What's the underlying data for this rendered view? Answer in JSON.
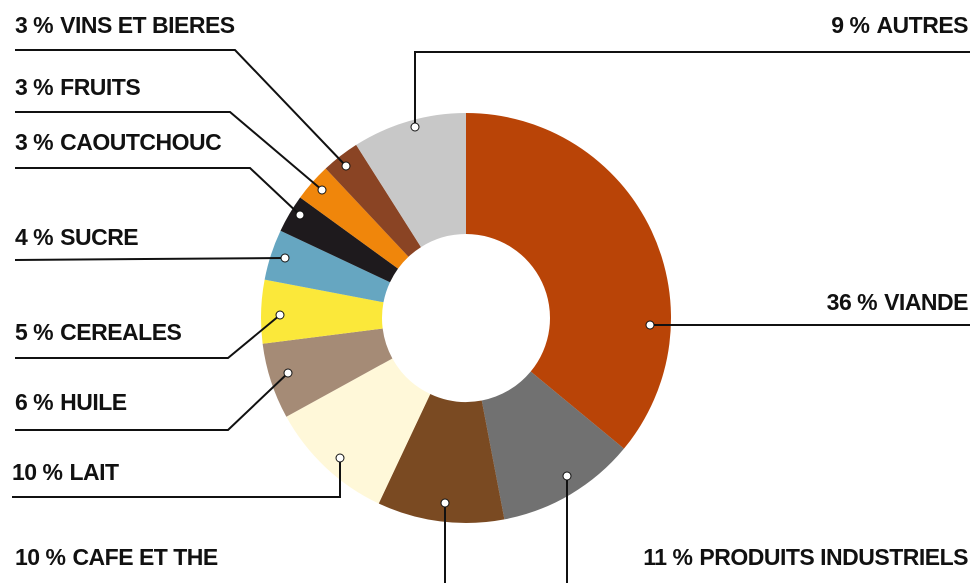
{
  "chart_data": {
    "type": "donut",
    "categories": [
      "VIANDE",
      "PRODUITS INDUSTRIELS",
      "CAFE ET THE",
      "LAIT",
      "HUILE",
      "CEREALES",
      "SUCRE",
      "CAOUTCHOUC",
      "FRUITS",
      "VINS ET BIERES",
      "AUTRES"
    ],
    "values": [
      36,
      11,
      10,
      10,
      6,
      5,
      4,
      3,
      3,
      3,
      9
    ],
    "value_labels": [
      "36 %",
      "11 %",
      "10 %",
      "10 %",
      "6 %",
      "5 %",
      "4 %",
      "3 %",
      "3 %",
      "3 %",
      "9 %"
    ],
    "colors": [
      "#b94407",
      "#717171",
      "#7a4a22",
      "#fff8d9",
      "#a58b76",
      "#fbe83a",
      "#66a6c1",
      "#1e1a1d",
      "#f0860b",
      "#8a4424",
      "#c8c8c8"
    ]
  }
}
